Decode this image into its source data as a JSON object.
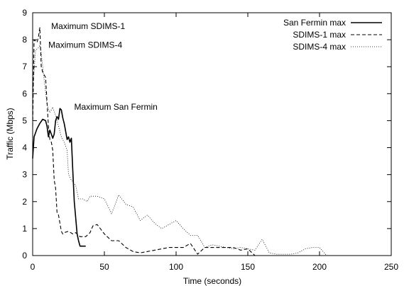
{
  "chart_data": {
    "type": "line",
    "title": "",
    "xlabel": "Time (seconds)",
    "ylabel": "Traffic (Mbps)",
    "xlim": [
      0,
      250
    ],
    "ylim": [
      0,
      9
    ],
    "xticks": [
      "0",
      "50",
      "100",
      "150",
      "200",
      "250"
    ],
    "yticks": [
      "0",
      "1",
      "2",
      "3",
      "4",
      "5",
      "6",
      "7",
      "8",
      "9"
    ],
    "grid": false,
    "legend_position": "top-right",
    "series": [
      {
        "name": "San Fermin max",
        "style": "solid",
        "color": "#000000",
        "x": [
          0,
          1,
          3,
          5,
          7,
          9,
          10,
          11,
          12,
          13,
          14,
          15,
          16,
          17,
          18,
          19,
          20,
          21,
          22,
          23,
          24,
          25,
          26,
          27,
          28,
          29,
          30,
          31,
          32,
          33,
          34,
          35,
          37
        ],
        "y": [
          3.6,
          4.4,
          4.7,
          4.9,
          5.05,
          5.0,
          4.8,
          4.4,
          4.65,
          4.5,
          4.35,
          4.5,
          5.0,
          5.15,
          5.05,
          5.45,
          5.4,
          5.1,
          4.9,
          4.6,
          4.3,
          4.4,
          4.2,
          4.35,
          3.1,
          2.0,
          1.4,
          0.8,
          0.55,
          0.35,
          0.35,
          0.35,
          0.35
        ]
      },
      {
        "name": "SDIMS-1 max",
        "style": "dashed",
        "color": "#000000",
        "x": [
          0,
          1,
          2,
          3,
          4,
          5,
          6,
          7,
          8,
          9,
          10,
          11,
          12,
          13,
          14,
          15,
          16,
          17,
          18,
          19,
          20,
          21,
          22,
          25,
          28,
          30,
          33,
          37,
          40,
          42,
          45,
          50,
          55,
          60,
          65,
          70,
          75,
          80,
          85,
          90,
          95,
          100,
          105,
          110,
          115,
          120,
          130,
          140,
          145,
          150,
          155
        ],
        "y": [
          4.8,
          8.0,
          7.95,
          7.9,
          8.1,
          8.45,
          7.0,
          6.8,
          6.7,
          6.6,
          5.7,
          4.8,
          4.3,
          4.2,
          3.9,
          2.8,
          2.5,
          1.6,
          1.5,
          1.2,
          0.9,
          0.8,
          0.85,
          0.9,
          0.8,
          0.85,
          0.7,
          0.7,
          0.85,
          1.1,
          1.15,
          0.8,
          0.55,
          0.55,
          0.3,
          0.15,
          0.1,
          0.15,
          0.2,
          0.25,
          0.3,
          0.3,
          0.3,
          0.45,
          0.05,
          0.3,
          0.3,
          0.3,
          0.2,
          0.25,
          0.0
        ]
      },
      {
        "name": "SDIMS-4 max",
        "style": "dotted",
        "color": "#000000",
        "x": [
          0,
          2,
          4,
          5,
          6,
          8,
          10,
          12,
          14,
          16,
          18,
          20,
          22,
          24,
          25,
          27,
          30,
          32,
          35,
          38,
          40,
          45,
          50,
          55,
          60,
          65,
          70,
          75,
          80,
          85,
          90,
          95,
          100,
          105,
          110,
          115,
          120,
          125,
          130,
          135,
          140,
          145,
          150,
          155,
          160,
          165,
          170,
          175,
          180,
          185,
          190,
          195,
          200,
          205
        ],
        "y": [
          6.0,
          7.6,
          7.7,
          7.8,
          7.5,
          6.5,
          5.6,
          5.3,
          5.5,
          5.2,
          4.8,
          4.4,
          4.2,
          3.9,
          3.0,
          2.8,
          2.6,
          2.1,
          2.1,
          2.0,
          2.2,
          2.2,
          2.1,
          1.55,
          2.25,
          1.9,
          1.8,
          1.3,
          1.5,
          1.2,
          1.0,
          1.15,
          1.3,
          1.0,
          0.75,
          0.75,
          0.3,
          0.4,
          0.35,
          0.3,
          0.25,
          0.3,
          0.25,
          0.2,
          0.6,
          0.1,
          0.05,
          0.05,
          0.05,
          0.1,
          0.25,
          0.3,
          0.3,
          0.0
        ]
      }
    ],
    "annotations": [
      {
        "text": "Maximum SDIMS-1",
        "x": 8,
        "y": 8.4
      },
      {
        "text": "Maximum SDIMS-4",
        "x": 6,
        "y": 7.7
      },
      {
        "text": "Maximum San Fermin",
        "x": 24,
        "y": 5.4
      }
    ]
  }
}
